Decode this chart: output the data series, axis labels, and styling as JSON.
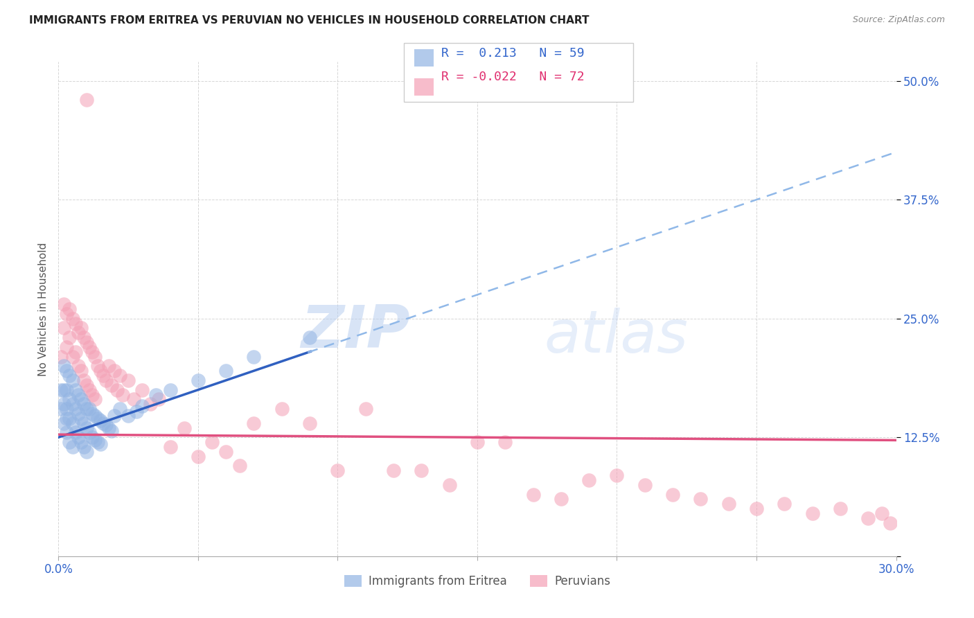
{
  "title": "IMMIGRANTS FROM ERITREA VS PERUVIAN NO VEHICLES IN HOUSEHOLD CORRELATION CHART",
  "source": "Source: ZipAtlas.com",
  "ylabel": "No Vehicles in Household",
  "xlim": [
    0.0,
    0.3
  ],
  "ylim": [
    0.0,
    0.52
  ],
  "xticks": [
    0.0,
    0.05,
    0.1,
    0.15,
    0.2,
    0.25,
    0.3
  ],
  "xticklabels": [
    "0.0%",
    "",
    "",
    "",
    "",
    "",
    "30.0%"
  ],
  "yticks": [
    0.0,
    0.125,
    0.25,
    0.375,
    0.5
  ],
  "yticklabels": [
    "",
    "12.5%",
    "25.0%",
    "37.5%",
    "50.0%"
  ],
  "blue_r": 0.213,
  "blue_n": 59,
  "pink_r": -0.022,
  "pink_n": 72,
  "blue_color": "#92b4e3",
  "pink_color": "#f4a0b5",
  "blue_line_color": "#3060c0",
  "pink_line_color": "#e05080",
  "blue_dash_color": "#90b8e8",
  "watermark_zip": "ZIP",
  "watermark_atlas": "atlas",
  "legend_label_blue": "Immigrants from Eritrea",
  "legend_label_pink": "Peruvians",
  "blue_scatter_x": [
    0.001,
    0.001,
    0.002,
    0.002,
    0.002,
    0.002,
    0.003,
    0.003,
    0.003,
    0.003,
    0.003,
    0.004,
    0.004,
    0.004,
    0.004,
    0.005,
    0.005,
    0.005,
    0.005,
    0.006,
    0.006,
    0.006,
    0.007,
    0.007,
    0.007,
    0.008,
    0.008,
    0.008,
    0.009,
    0.009,
    0.009,
    0.01,
    0.01,
    0.01,
    0.011,
    0.011,
    0.012,
    0.012,
    0.013,
    0.013,
    0.014,
    0.014,
    0.015,
    0.015,
    0.016,
    0.017,
    0.018,
    0.019,
    0.02,
    0.022,
    0.025,
    0.028,
    0.03,
    0.035,
    0.04,
    0.05,
    0.06,
    0.07,
    0.09
  ],
  "blue_scatter_y": [
    0.175,
    0.155,
    0.2,
    0.175,
    0.16,
    0.14,
    0.195,
    0.175,
    0.155,
    0.145,
    0.13,
    0.19,
    0.165,
    0.145,
    0.12,
    0.185,
    0.16,
    0.14,
    0.115,
    0.175,
    0.155,
    0.13,
    0.17,
    0.15,
    0.125,
    0.165,
    0.145,
    0.12,
    0.16,
    0.14,
    0.115,
    0.155,
    0.135,
    0.11,
    0.155,
    0.13,
    0.15,
    0.125,
    0.148,
    0.122,
    0.145,
    0.12,
    0.143,
    0.118,
    0.14,
    0.138,
    0.135,
    0.132,
    0.148,
    0.155,
    0.148,
    0.152,
    0.158,
    0.17,
    0.175,
    0.185,
    0.195,
    0.21,
    0.23
  ],
  "pink_scatter_x": [
    0.001,
    0.002,
    0.002,
    0.003,
    0.003,
    0.004,
    0.004,
    0.005,
    0.005,
    0.006,
    0.006,
    0.007,
    0.007,
    0.008,
    0.008,
    0.009,
    0.009,
    0.01,
    0.01,
    0.011,
    0.011,
    0.012,
    0.012,
    0.013,
    0.013,
    0.014,
    0.015,
    0.016,
    0.017,
    0.018,
    0.019,
    0.02,
    0.021,
    0.022,
    0.023,
    0.025,
    0.027,
    0.03,
    0.033,
    0.036,
    0.04,
    0.045,
    0.05,
    0.055,
    0.06,
    0.065,
    0.07,
    0.08,
    0.09,
    0.1,
    0.11,
    0.12,
    0.13,
    0.14,
    0.15,
    0.16,
    0.17,
    0.18,
    0.19,
    0.2,
    0.21,
    0.22,
    0.23,
    0.24,
    0.25,
    0.26,
    0.27,
    0.28,
    0.29,
    0.295,
    0.298,
    0.01
  ],
  "pink_scatter_y": [
    0.21,
    0.265,
    0.24,
    0.255,
    0.22,
    0.26,
    0.23,
    0.25,
    0.21,
    0.245,
    0.215,
    0.235,
    0.2,
    0.24,
    0.195,
    0.23,
    0.185,
    0.225,
    0.18,
    0.22,
    0.175,
    0.215,
    0.17,
    0.21,
    0.165,
    0.2,
    0.195,
    0.19,
    0.185,
    0.2,
    0.18,
    0.195,
    0.175,
    0.19,
    0.17,
    0.185,
    0.165,
    0.175,
    0.16,
    0.165,
    0.115,
    0.135,
    0.105,
    0.12,
    0.11,
    0.095,
    0.14,
    0.155,
    0.14,
    0.09,
    0.155,
    0.09,
    0.09,
    0.075,
    0.12,
    0.12,
    0.065,
    0.06,
    0.08,
    0.085,
    0.075,
    0.065,
    0.06,
    0.055,
    0.05,
    0.055,
    0.045,
    0.05,
    0.04,
    0.045,
    0.035,
    0.48
  ]
}
